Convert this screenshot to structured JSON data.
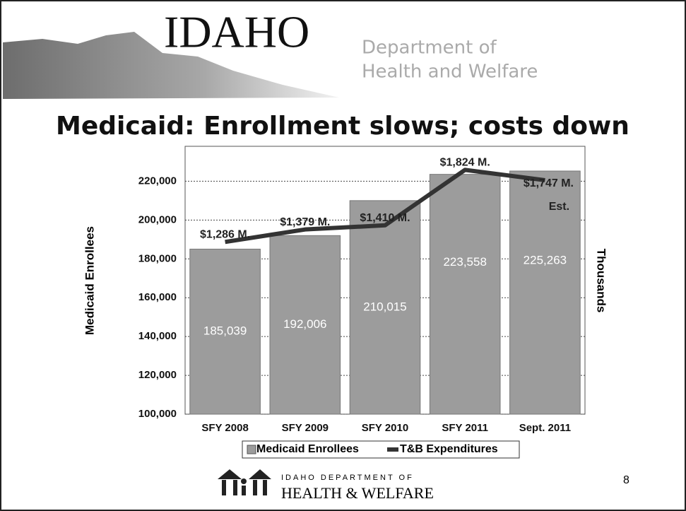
{
  "header": {
    "logo": "IDAHO",
    "department_line1": "Department of",
    "department_line2": "Health and Welfare"
  },
  "footer": {
    "agency_line1": "IDAHO DEPARTMENT OF",
    "agency_line2": "HEALTH & WELFARE",
    "page_number": "8"
  },
  "chart_data": {
    "type": "bar",
    "title": "Medicaid: Enrollment slows; costs down",
    "categories": [
      "SFY 2008",
      "SFY 2009",
      "SFY 2010",
      "SFY 2011",
      "Sept. 2011"
    ],
    "series": [
      {
        "name": "Medicaid Enrollees",
        "type": "bar",
        "color": "#9c9c9c",
        "values": [
          185039,
          192006,
          210015,
          223558,
          225263
        ],
        "value_labels": [
          "185,039",
          "192,006",
          "210,015",
          "223,558",
          "225,263"
        ]
      },
      {
        "name": "T&B Expenditures",
        "type": "line",
        "axis": "y2",
        "color": "#333333",
        "values": [
          1286,
          1379,
          1410,
          1824,
          1747
        ],
        "value_labels": [
          "$1,286 M.",
          "$1,379 M.",
          "$1,410 M.",
          "$1,824 M.",
          "$1,747 M."
        ]
      }
    ],
    "annotations": [
      "Est."
    ],
    "y_label": "Medicaid Enrollees",
    "y2_label": "Thousands",
    "ylim": [
      100000,
      238000
    ],
    "yticks": [
      {
        "value": 100000,
        "label": "100,000"
      },
      {
        "value": 120000,
        "label": "120,000"
      },
      {
        "value": 140000,
        "label": "140,000"
      },
      {
        "value": 160000,
        "label": "160,000"
      },
      {
        "value": 180000,
        "label": "180,000"
      },
      {
        "value": 200000,
        "label": "200,000"
      },
      {
        "value": 220000,
        "label": "220,000"
      }
    ],
    "y2lim": [
      0,
      2000
    ],
    "grid": true,
    "legend": "bottom"
  }
}
